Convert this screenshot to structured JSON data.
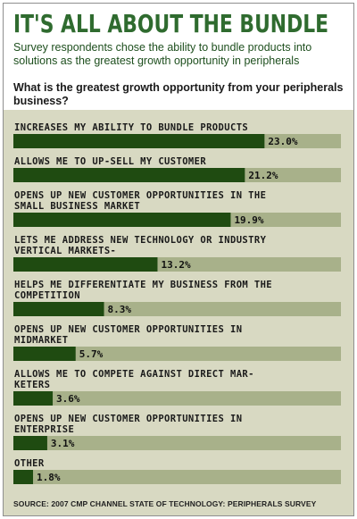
{
  "header": {
    "title": "IT'S ALL ABOUT THE BUNDLE",
    "subtitle": "Survey respondents chose the ability to bundle products into solutions as the greatest growth opportunity in peripherals",
    "question": "What is the greatest growth opportunity from your peripherals business?"
  },
  "source": "SOURCE: 2007 CMP CHANNEL STATE OF TECHNOLOGY: PERIPHERALS SURVEY",
  "colors": {
    "bar": "#1f4b11",
    "track": "#a8b18a",
    "panel": "#d8d9c2",
    "title": "#2f6b2f"
  },
  "chart_data": {
    "type": "bar",
    "orientation": "horizontal",
    "title": "IT'S ALL ABOUT THE BUNDLE",
    "xlim": [
      0,
      30
    ],
    "categories": [
      [
        "INCREASES MY ABILITY TO BUNDLE PRODUCTS"
      ],
      [
        "ALLOWS ME TO UP-SELL MY CUSTOMER"
      ],
      [
        "OPENS UP NEW CUSTOMER OPPORTUNITIES IN THE",
        "SMALL BUSINESS MARKET"
      ],
      [
        "LETS ME ADDRESS NEW TECHNOLOGY OR INDUSTRY",
        "VERTICAL MARKETS-"
      ],
      [
        "HELPS ME DIFFERENTIATE MY BUSINESS FROM THE",
        "COMPETITION"
      ],
      [
        "OPENS UP NEW CUSTOMER OPPORTUNITIES IN",
        "MIDMARKET"
      ],
      [
        "ALLOWS ME TO COMPETE AGAINST DIRECT MAR-",
        "KETERS"
      ],
      [
        "OPENS UP NEW CUSTOMER OPPORTUNITIES IN",
        "ENTERPRISE"
      ],
      [
        "OTHER"
      ]
    ],
    "values": [
      23.0,
      21.2,
      19.9,
      13.2,
      8.3,
      5.7,
      3.6,
      3.1,
      1.8
    ],
    "value_labels": [
      "23.0%",
      "21.2%",
      "19.9%",
      "13.2%",
      "8.3%",
      "5.7%",
      "3.6%",
      "3.1%",
      "1.8%"
    ]
  }
}
